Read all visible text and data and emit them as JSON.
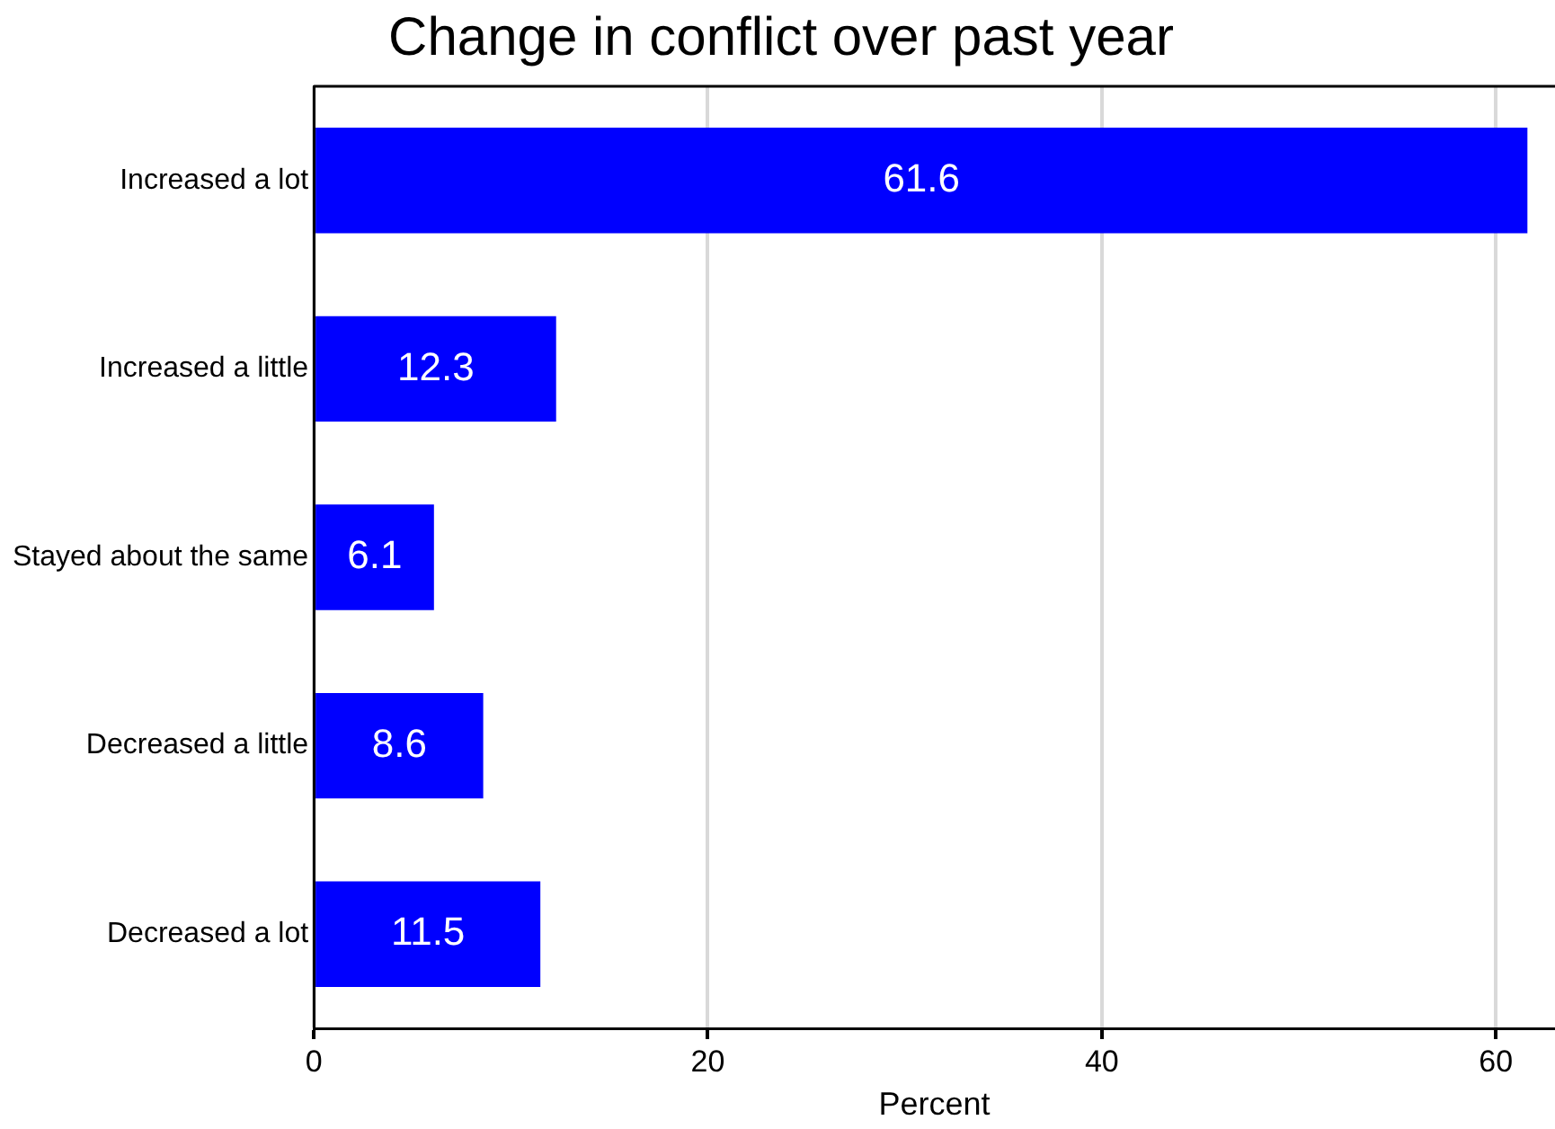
{
  "chart_data": {
    "type": "bar",
    "orientation": "horizontal",
    "title": "Change in conflict over past year",
    "xlabel": "Percent",
    "categories": [
      "Increased a lot",
      "Increased a little",
      "Stayed about the same",
      "Decreased a little",
      "Decreased a lot"
    ],
    "values": [
      61.6,
      12.3,
      6.1,
      8.6,
      11.5
    ],
    "color": "#0000ff",
    "data_labels": true,
    "xlim": [
      0,
      63
    ],
    "xticks": [
      0,
      20,
      40,
      60
    ],
    "grid": "x"
  }
}
